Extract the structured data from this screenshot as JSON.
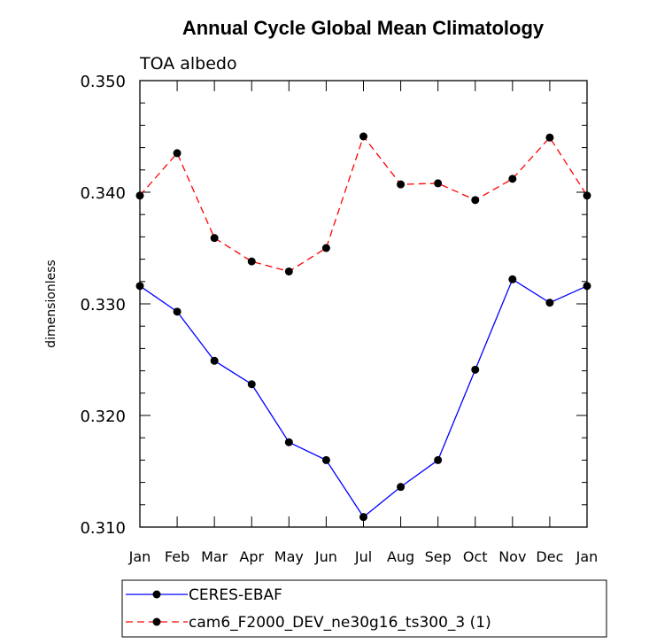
{
  "chart_data": {
    "type": "line",
    "title": "Annual Cycle Global Mean Climatology",
    "subtitle": "TOA albedo",
    "xlabel": "",
    "ylabel": "dimensionless",
    "categories": [
      "Jan",
      "Feb",
      "Mar",
      "Apr",
      "May",
      "Jun",
      "Jul",
      "Aug",
      "Sep",
      "Oct",
      "Nov",
      "Dec",
      "Jan"
    ],
    "ylim": [
      0.31,
      0.35
    ],
    "yticks": [
      0.31,
      0.32,
      0.33,
      0.34,
      0.35
    ],
    "ytick_labels": [
      "0.310",
      "0.320",
      "0.330",
      "0.340",
      "0.350"
    ],
    "legend_position": "bottom",
    "grid": false,
    "series": [
      {
        "name": "CERES-EBAF",
        "color": "#0000ff",
        "line_style": "solid",
        "marker": "circle",
        "values": [
          0.3316,
          0.3293,
          0.3249,
          0.3228,
          0.3176,
          0.316,
          0.3109,
          0.3136,
          0.316,
          0.3241,
          0.3322,
          0.3301,
          0.3316
        ]
      },
      {
        "name": "cam6_F2000_DEV_ne30g16_ts300_3 (1)",
        "color": "#ff0000",
        "line_style": "dashed",
        "marker": "circle",
        "values": [
          0.3397,
          0.3435,
          0.3359,
          0.3338,
          0.3329,
          0.335,
          0.345,
          0.3407,
          0.3408,
          0.3393,
          0.3412,
          0.3449,
          0.3397
        ]
      }
    ]
  }
}
